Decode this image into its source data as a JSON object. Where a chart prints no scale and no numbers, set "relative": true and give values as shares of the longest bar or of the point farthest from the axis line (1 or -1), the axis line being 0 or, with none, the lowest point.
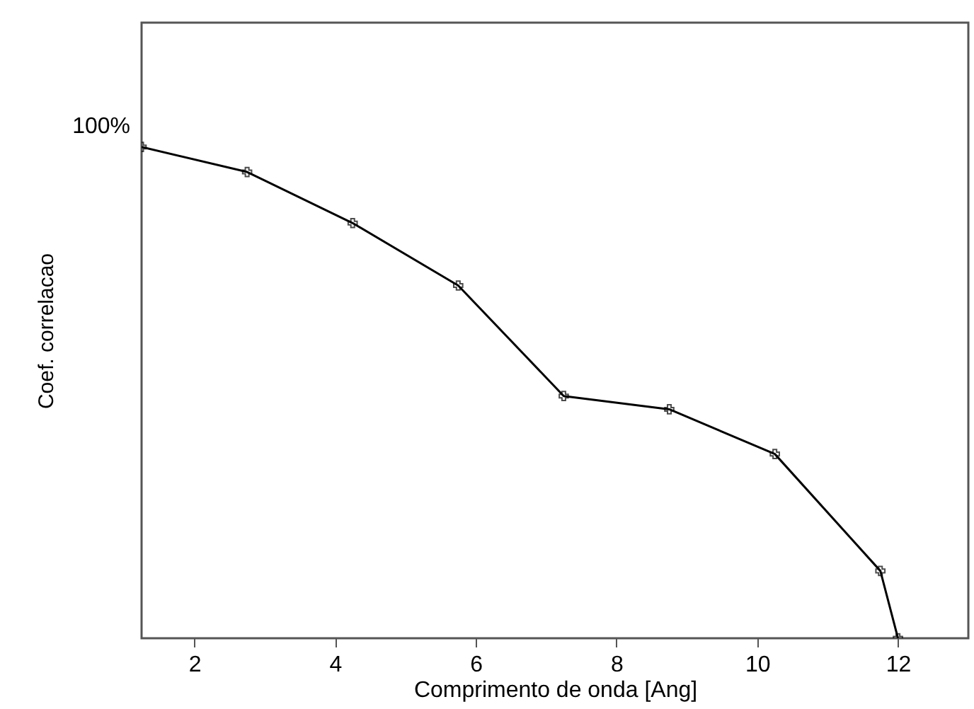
{
  "chart_data": {
    "type": "line",
    "relative": true,
    "xlabel": "Comprimento de onda [Ang]",
    "ylabel": "Coef. correlacao",
    "xlim": [
      1.25,
      13
    ],
    "xticks": [
      2,
      4,
      6,
      8,
      10,
      12
    ],
    "x": [
      1.25,
      2.75,
      4.25,
      5.75,
      7.25,
      8.75,
      10.25,
      11.75,
      12
    ],
    "series": [
      {
        "color": "#000000",
        "values": [
          1,
          0.949,
          0.845,
          0.718,
          0.493,
          0.466,
          0.375,
          0.137,
          0
        ]
      }
    ],
    "marker": "cross",
    "line_style": "solid",
    "grid": false,
    "annotations": [
      "100%"
    ]
  }
}
